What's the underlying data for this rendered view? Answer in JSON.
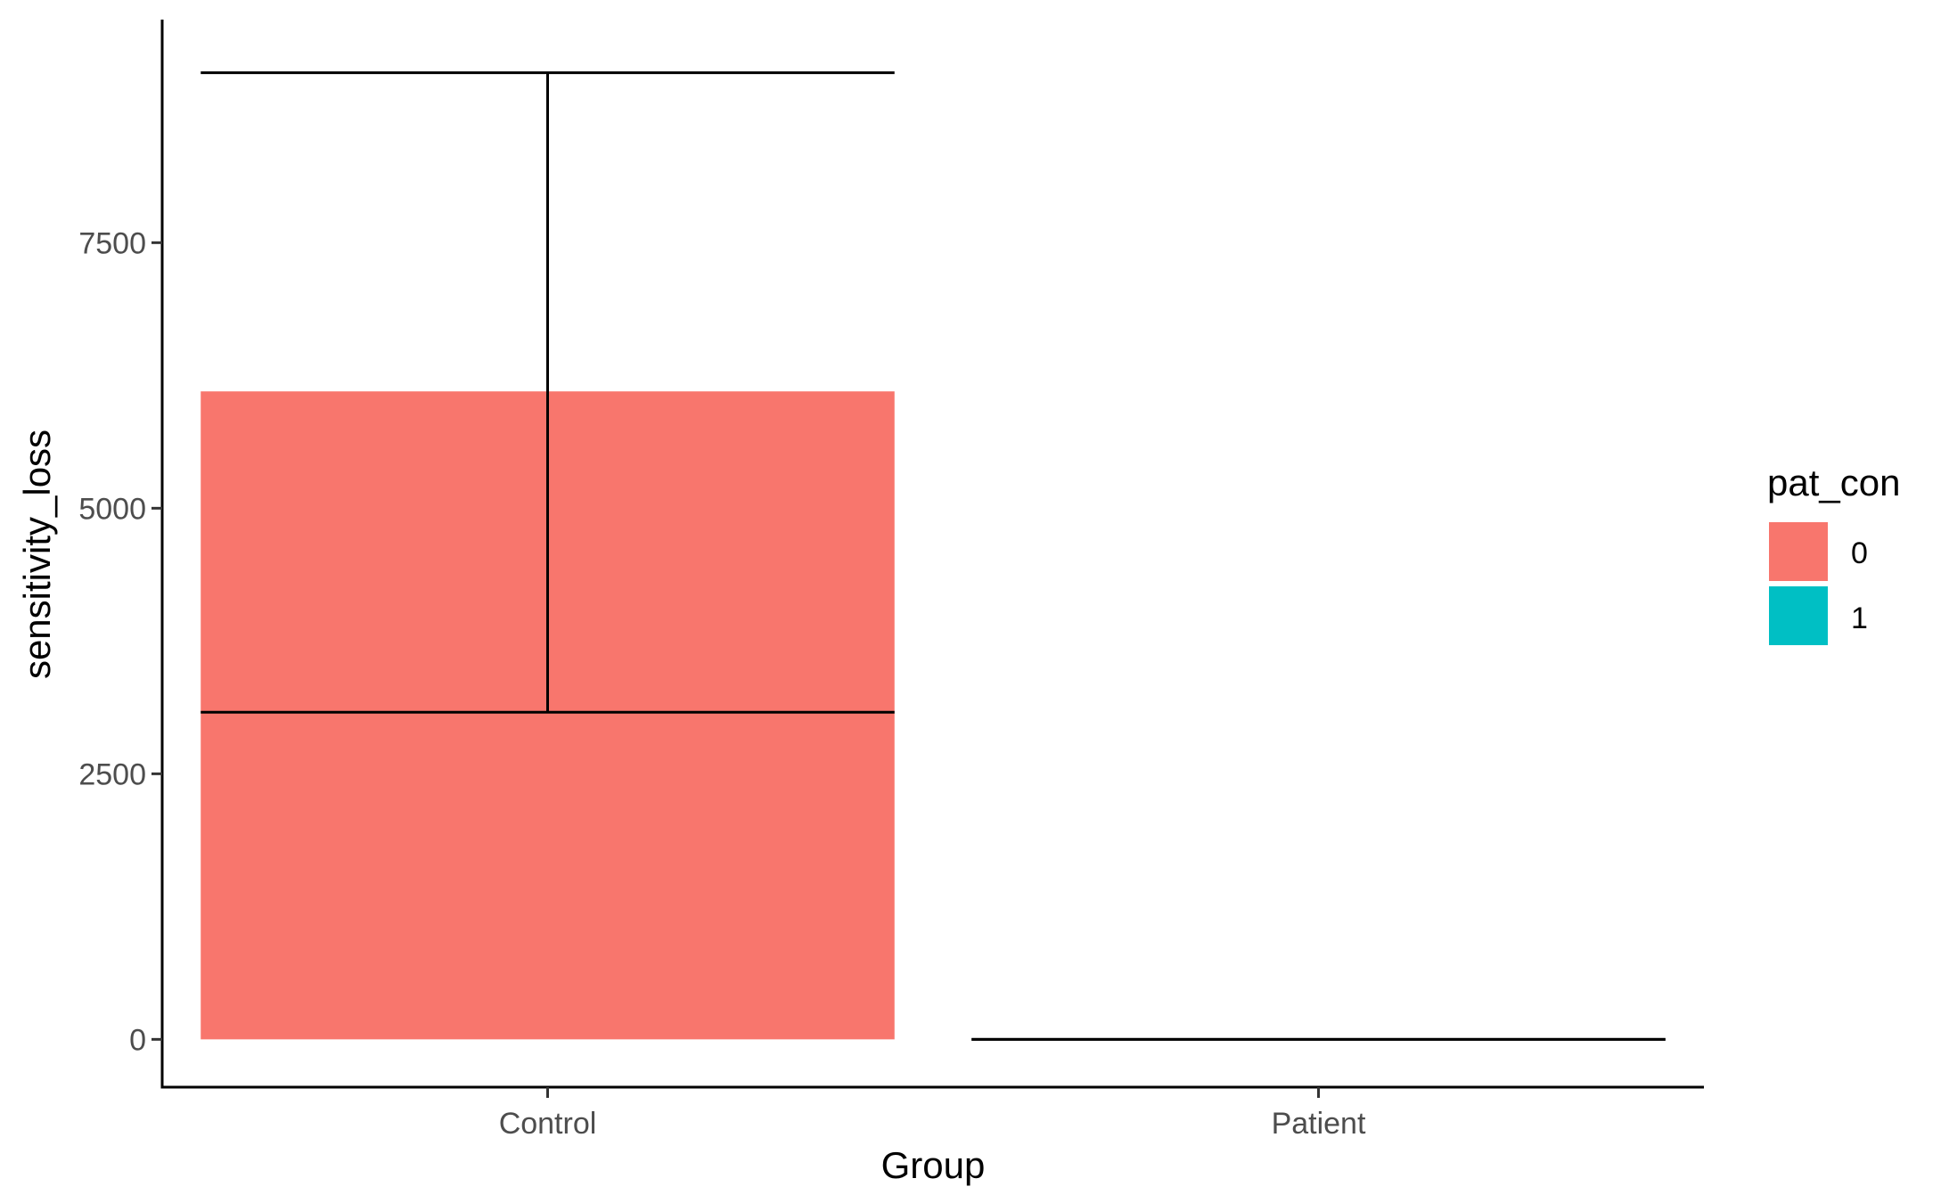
{
  "chart_data": {
    "type": "bar",
    "categories": [
      "Control",
      "Patient"
    ],
    "series": [
      {
        "name": "0",
        "values": [
          6100,
          0
        ],
        "error_low": [
          3080,
          0
        ],
        "error_high": [
          9100,
          0
        ]
      }
    ],
    "xlabel": "Group",
    "ylabel": "sensitivity_loss",
    "ylim": [
      -450,
      9600
    ],
    "yticks": [
      0,
      2500,
      5000,
      7500
    ],
    "ytick_labels": [
      "0",
      "2500",
      "5000",
      "7500"
    ],
    "grid": false,
    "legend": {
      "title": "pat_con",
      "placement": "right",
      "entries": [
        {
          "label": "0",
          "color": "#F8766D"
        },
        {
          "label": "1",
          "color": "#00BFC4"
        }
      ]
    },
    "colors": {
      "bar": "#F8766D",
      "axis": "#000000",
      "errorbar": "#000000"
    }
  }
}
